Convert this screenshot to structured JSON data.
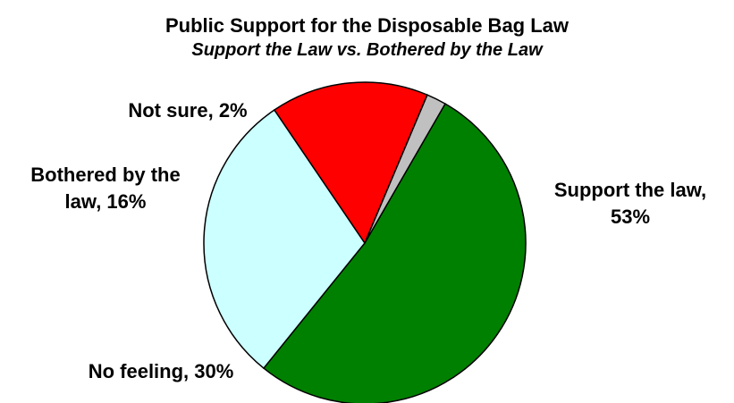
{
  "chart_data": {
    "type": "pie",
    "title": "Public Support for the Disposable Bag Law",
    "subtitle": "Support the Law vs. Bothered by the Law",
    "slices": [
      {
        "label_lines": [
          "Support the law,",
          "53%"
        ],
        "label": "Support the law",
        "value": 53,
        "color": "#008000"
      },
      {
        "label_lines": [
          "No feeling, 30%"
        ],
        "label": "No feeling",
        "value": 30,
        "color": "#ccffff"
      },
      {
        "label_lines": [
          "Bothered by the",
          "law, 16%"
        ],
        "label": "Bothered by the law",
        "value": 16,
        "color": "#ff0000"
      },
      {
        "label_lines": [
          "Not sure, 2%"
        ],
        "label": "Not sure",
        "value": 2,
        "color": "#c0c0c0"
      }
    ]
  }
}
